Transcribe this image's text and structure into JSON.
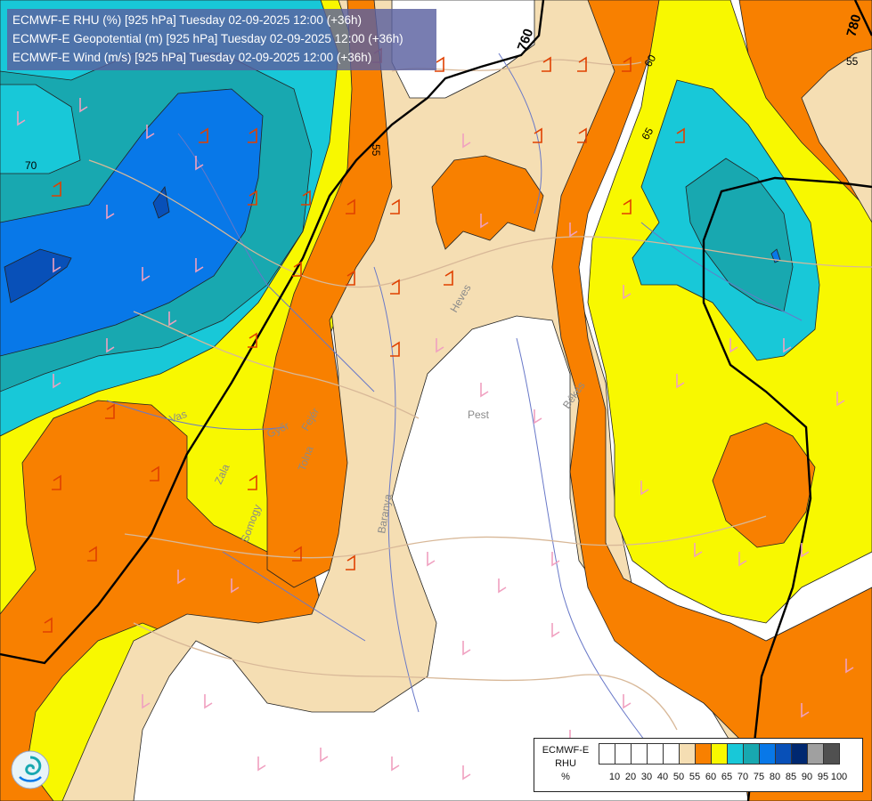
{
  "title_lines": [
    "ECMWF-E RHU (%) [925 hPa] Tuesday 02-09-2025 12:00 (+36h)",
    "ECMWF-E Geopotential (m) [925 hPa] Tuesday 02-09-2025 12:00 (+36h)",
    "ECMWF-E Wind (m/s) [925 hPa] Tuesday 02-09-2025 12:00 (+36h)"
  ],
  "legend": {
    "line1": "ECMWF-E",
    "line2": "RHU",
    "unit": "%",
    "swatches": [
      "#ffffff",
      "#ffffff",
      "#ffffff",
      "#ffffff",
      "#ffffff",
      "#f5deb3",
      "#f88000",
      "#f8f800",
      "#18c8d8",
      "#18a8b0",
      "#0878e8",
      "#0850b8",
      "#002870",
      "#a0a0a0",
      "#505050"
    ],
    "ticks": [
      "10",
      "20",
      "30",
      "40",
      "50",
      "55",
      "60",
      "65",
      "70",
      "75",
      "80",
      "85",
      "90",
      "95",
      "100"
    ]
  },
  "contour_labels": {
    "geopotential": [
      "760",
      "780"
    ],
    "rhu": [
      "70",
      "55",
      "65",
      "60",
      "55"
    ]
  },
  "place_labels": [
    "Pest",
    "Heves",
    "Vas",
    "Zala",
    "Tolna",
    "Fejér",
    "Győr",
    "Békés",
    "Baranya",
    "Somogy"
  ],
  "colors": {
    "white": "#ffffff",
    "wheat": "#f5deb3",
    "orange": "#f88000",
    "yellow": "#f8f800",
    "cyan": "#18c8d8",
    "teal": "#18a8b0",
    "blue": "#0878e8",
    "dark_blue": "#0850b8",
    "border": "#d8b898",
    "river": "#6878c8",
    "barb_light": "#f0a0c0",
    "barb_dark": "#e04000"
  },
  "logo": "ogimet-swirl-icon"
}
